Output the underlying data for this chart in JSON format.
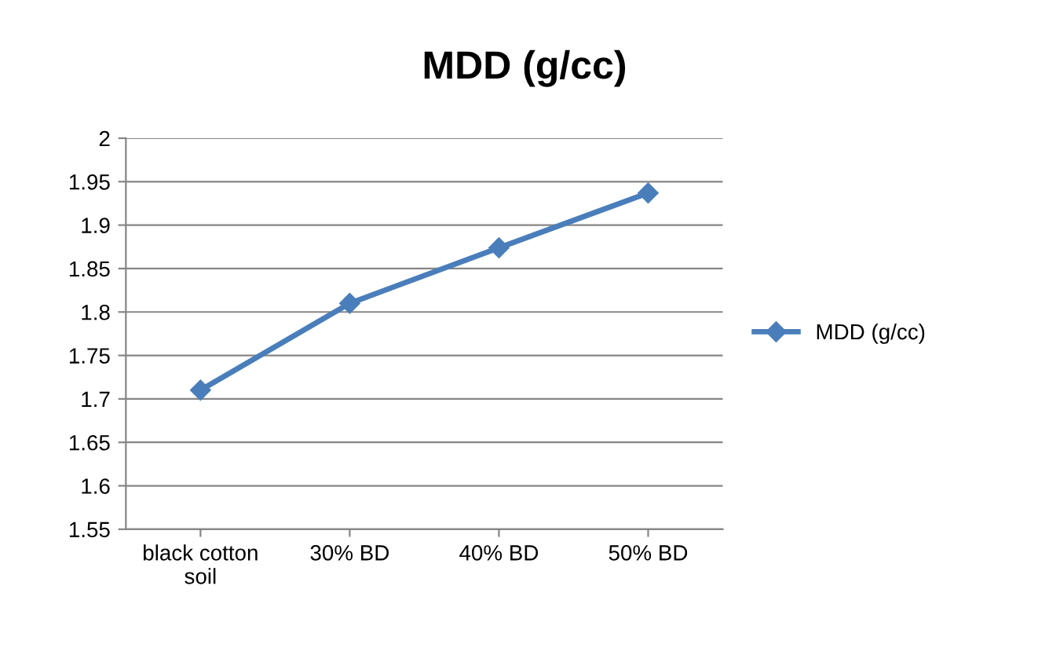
{
  "chart_data": {
    "type": "line",
    "title": "MDD (g/cc)",
    "categories": [
      "black cotton\nsoil",
      "30% BD",
      "40% BD",
      "50% BD"
    ],
    "series": [
      {
        "name": "MDD (g/cc)",
        "color": "#4a7ebb",
        "values": [
          1.71,
          1.81,
          1.874,
          1.937
        ]
      }
    ],
    "ylim": [
      1.55,
      2
    ],
    "yticks": [
      1.55,
      1.6,
      1.65,
      1.7,
      1.75,
      1.8,
      1.85,
      1.9,
      1.95,
      2
    ],
    "grid": "y",
    "legend": "right",
    "marker": "diamond",
    "line_style": "solid"
  }
}
